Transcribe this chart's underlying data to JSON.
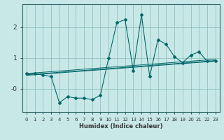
{
  "xlabel": "Humidex (Indice chaleur)",
  "background_color": "#c8e8e8",
  "grid_color": "#8ababa",
  "line_color": "#006868",
  "spine_color": "#336666",
  "x_values": [
    0,
    1,
    2,
    3,
    4,
    5,
    6,
    7,
    8,
    9,
    10,
    11,
    12,
    13,
    14,
    15,
    16,
    17,
    18,
    19,
    20,
    21,
    22,
    23
  ],
  "y_main": [
    0.5,
    0.5,
    0.45,
    0.4,
    -0.45,
    -0.25,
    -0.3,
    -0.3,
    -0.35,
    -0.2,
    1.0,
    2.15,
    2.25,
    0.6,
    2.4,
    0.4,
    1.6,
    1.45,
    1.05,
    0.85,
    1.1,
    1.2,
    0.9,
    0.9
  ],
  "y_trend1": [
    0.44,
    0.46,
    0.48,
    0.5,
    0.52,
    0.54,
    0.56,
    0.58,
    0.6,
    0.62,
    0.64,
    0.66,
    0.68,
    0.7,
    0.72,
    0.74,
    0.76,
    0.78,
    0.8,
    0.82,
    0.84,
    0.86,
    0.88,
    0.9
  ],
  "y_trend2": [
    0.46,
    0.48,
    0.5,
    0.52,
    0.54,
    0.56,
    0.58,
    0.6,
    0.62,
    0.64,
    0.66,
    0.68,
    0.7,
    0.72,
    0.74,
    0.76,
    0.78,
    0.8,
    0.82,
    0.84,
    0.86,
    0.88,
    0.9,
    0.92
  ],
  "y_trend3": [
    0.5,
    0.52,
    0.54,
    0.56,
    0.58,
    0.6,
    0.62,
    0.64,
    0.66,
    0.68,
    0.7,
    0.72,
    0.74,
    0.76,
    0.78,
    0.8,
    0.82,
    0.84,
    0.86,
    0.88,
    0.9,
    0.92,
    0.94,
    0.96
  ],
  "ylim": [
    -0.75,
    2.75
  ],
  "xlim": [
    -0.5,
    23.5
  ],
  "yticks": [
    0.0,
    1.0,
    2.0
  ],
  "ytick_labels": [
    "-0",
    "1",
    "2"
  ],
  "xticks": [
    0,
    1,
    2,
    3,
    4,
    5,
    6,
    7,
    8,
    9,
    10,
    11,
    12,
    13,
    14,
    15,
    16,
    17,
    18,
    19,
    20,
    21,
    22,
    23
  ],
  "xlabel_fontsize": 6,
  "tick_fontsize": 5,
  "marker_size": 2.0
}
